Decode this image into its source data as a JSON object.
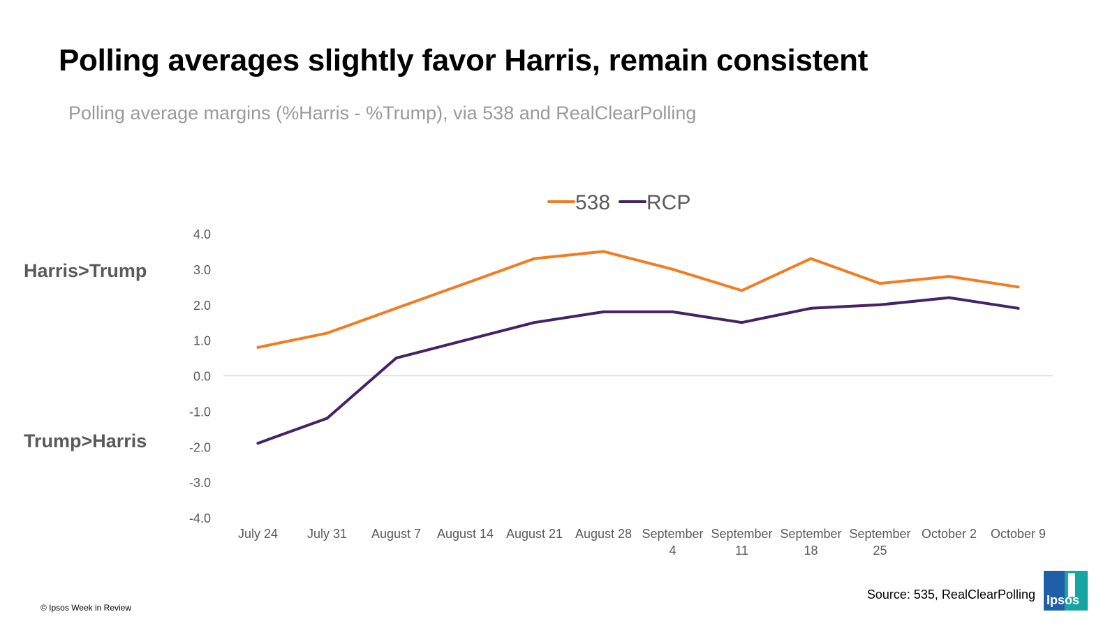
{
  "header": {
    "title": "Polling averages slightly favor Harris, remain consistent",
    "subtitle": "Polling average margins (%Harris - %Trump), via 538 and RealClearPolling"
  },
  "side_labels": {
    "top": "Harris>Trump",
    "bottom": "Trump>Harris"
  },
  "footer": {
    "source": "Source: 535, RealClearPolling",
    "copyright": "© Ipsos Week in Review",
    "logo_text": "Ipsos"
  },
  "colors": {
    "series_538": "#f47c20",
    "series_rcp": "#452263",
    "axis_text": "#595959",
    "zero_line": "#d9d9d9"
  },
  "chart_data": {
    "type": "line",
    "categories": [
      [
        "July 24"
      ],
      [
        "July 31"
      ],
      [
        "August 7"
      ],
      [
        "August 14"
      ],
      [
        "August 21"
      ],
      [
        "August 28"
      ],
      [
        "September",
        "4"
      ],
      [
        "September",
        "11"
      ],
      [
        "September",
        "18"
      ],
      [
        "September",
        "25"
      ],
      [
        "October 2"
      ],
      [
        "October 9"
      ]
    ],
    "series": [
      {
        "name": "538",
        "color": "#f47c20",
        "values": [
          0.8,
          1.2,
          1.9,
          2.6,
          3.3,
          3.5,
          3.0,
          2.4,
          3.3,
          2.6,
          2.8,
          2.5
        ]
      },
      {
        "name": "RCP",
        "color": "#452263",
        "values": [
          -1.9,
          -1.2,
          0.5,
          1.0,
          1.5,
          1.8,
          1.8,
          1.5,
          1.9,
          2.0,
          2.2,
          1.9
        ]
      }
    ],
    "ylim": [
      -4,
      4
    ],
    "yticks": [
      4,
      3,
      2,
      1,
      0,
      -1,
      -2,
      -3,
      -4
    ],
    "ytick_labels": [
      "4.0",
      "3.0",
      "2.0",
      "1.0",
      "0.0",
      "-1.0",
      "-2.0",
      "-3.0",
      "-4.0"
    ],
    "legend_position": "top-center",
    "grid": false,
    "zero_line": true
  }
}
